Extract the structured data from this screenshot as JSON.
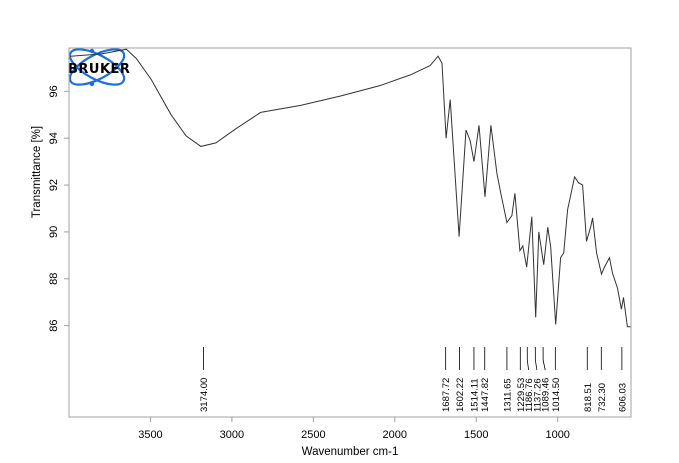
{
  "chart_data": {
    "type": "line",
    "title": "",
    "xlabel": "Wavenumber cm-1",
    "ylabel": "Transmittance [%]",
    "xlim": [
      4000,
      550
    ],
    "ylim": [
      82.1,
      97.85
    ],
    "x_reversed": true,
    "grid": false,
    "legend": "none",
    "x_ticks": [
      3500,
      3000,
      2500,
      2000,
      1500,
      1000
    ],
    "x_tick_labels": [
      "3500",
      "3000",
      "2500",
      "2000",
      "1500",
      "1000"
    ],
    "y_ticks": [
      96,
      94,
      92,
      90,
      88,
      86
    ],
    "y_tick_labels": [
      "96",
      "94",
      "92",
      "90",
      "88",
      "86"
    ],
    "line_color": "#333333",
    "series": [
      {
        "x": [
          3990,
          3800,
          3648,
          3587,
          3495,
          3373,
          3281,
          3190,
          3098,
          2976,
          2823,
          2578,
          2333,
          2089,
          1905,
          1783,
          1734,
          1710,
          1685,
          1660,
          1605,
          1563,
          1538,
          1514,
          1483,
          1446,
          1410,
          1373,
          1349,
          1312,
          1281,
          1263,
          1232,
          1214,
          1190,
          1159,
          1135,
          1116,
          1086,
          1061,
          1043,
          1012,
          982,
          963,
          939,
          896,
          872,
          847,
          823,
          798,
          786,
          761,
          731,
          713,
          682,
          664,
          633,
          609,
          596,
          572,
          553
        ],
        "y": [
          97.5,
          97.6,
          97.8,
          97.4,
          96.5,
          95.0,
          94.1,
          93.65,
          93.8,
          94.4,
          95.1,
          95.4,
          95.8,
          96.25,
          96.7,
          97.1,
          97.5,
          97.2,
          94.0,
          95.65,
          89.8,
          94.35,
          93.9,
          93.0,
          94.55,
          91.5,
          94.55,
          92.5,
          91.65,
          90.4,
          90.7,
          91.65,
          89.2,
          89.4,
          88.5,
          90.65,
          86.35,
          90.0,
          88.6,
          90.2,
          89.35,
          86.05,
          88.9,
          89.1,
          90.95,
          92.35,
          92.1,
          92.0,
          89.6,
          90.2,
          90.6,
          89.1,
          88.2,
          88.5,
          88.9,
          88.25,
          87.6,
          86.7,
          87.2,
          85.95,
          85.95
        ]
      }
    ],
    "peak_labels": [
      "3174.00",
      "1687.72",
      "1602.22",
      "1514.11",
      "1447.82",
      "1311.65",
      "1229.53",
      "1186.76",
      "1137.26",
      "1089.46",
      "1014.50",
      "818.51",
      "732.30",
      "606.03"
    ],
    "logo": {
      "text": "BRUKER",
      "color": "#1a6fe0"
    }
  }
}
